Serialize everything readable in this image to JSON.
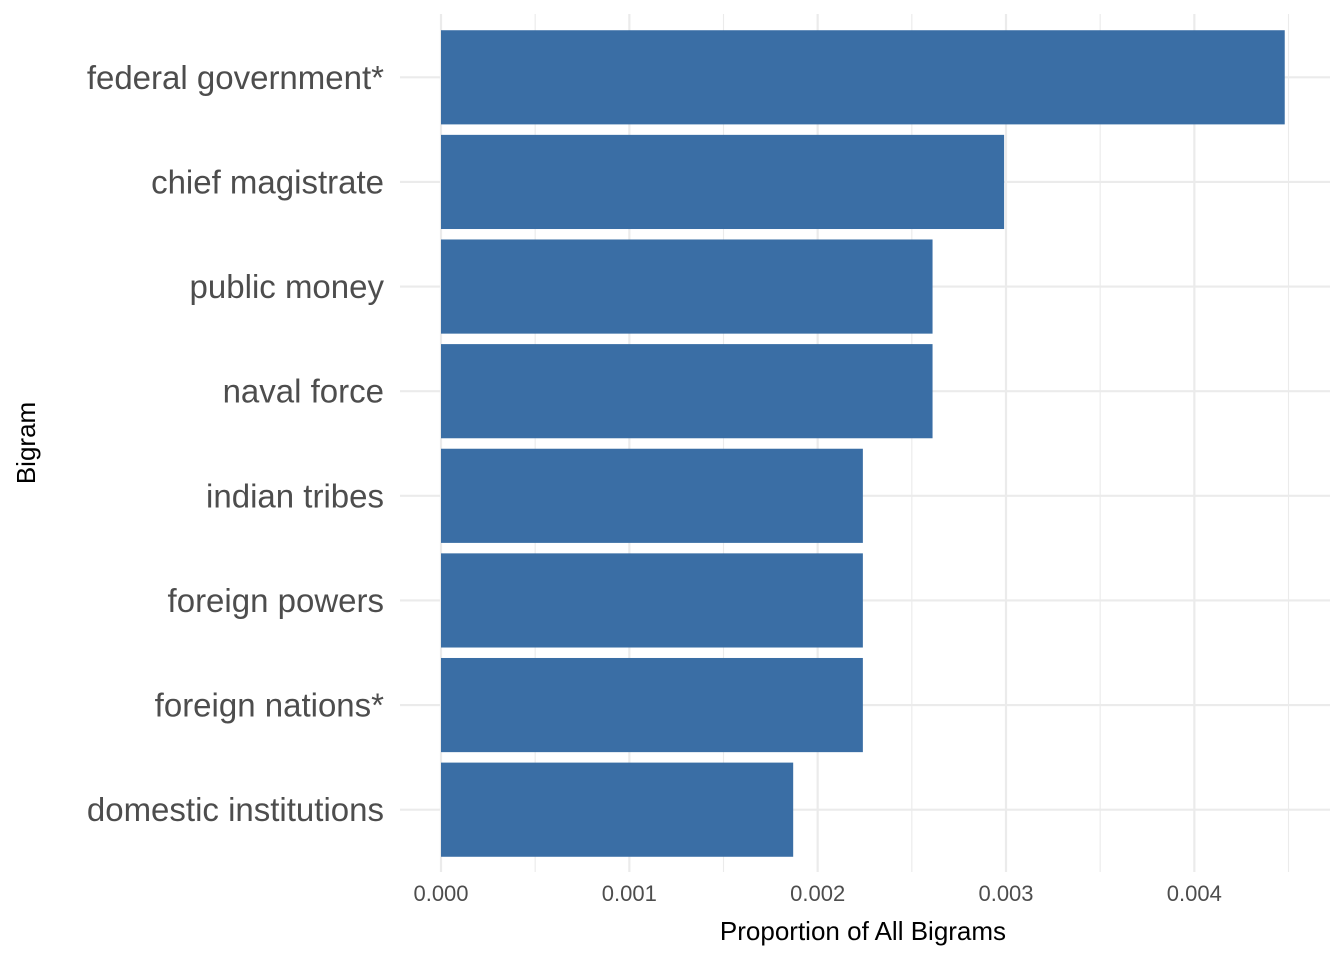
{
  "chart_data": {
    "type": "bar",
    "orientation": "horizontal",
    "categories": [
      "federal government*",
      "chief magistrate",
      "public money",
      "naval force",
      "indian tribes",
      "foreign powers",
      "foreign nations*",
      "domestic institutions"
    ],
    "values": [
      0.00448,
      0.00299,
      0.00261,
      0.00261,
      0.00224,
      0.00224,
      0.00224,
      0.00187
    ],
    "xlabel": "Proportion of All Bigrams",
    "ylabel": "Bigram",
    "xlim": [
      0,
      0.0045
    ],
    "x_ticks": [
      "0.000",
      "0.001",
      "0.002",
      "0.003",
      "0.004"
    ],
    "x_tick_values": [
      0,
      0.001,
      0.002,
      0.003,
      0.004
    ],
    "grid": true,
    "legend": "none",
    "colors": {
      "bar": "#3a6ea5",
      "grid": "#ebebeb",
      "text": "#4d4d4d"
    }
  }
}
